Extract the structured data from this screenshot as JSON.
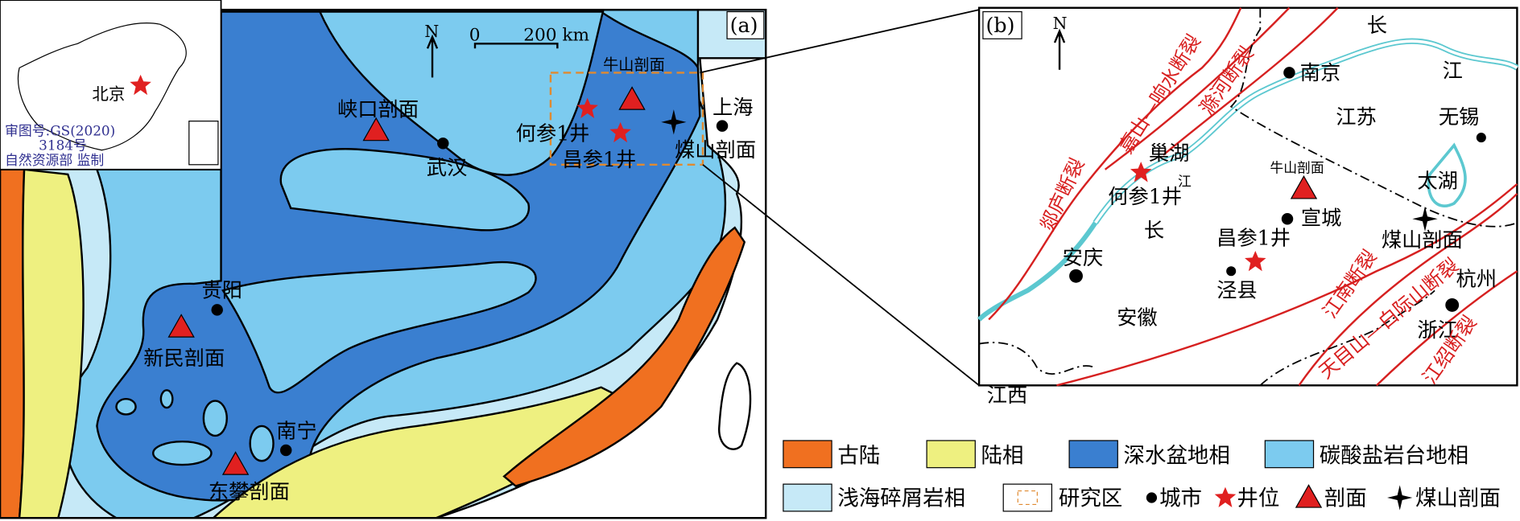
{
  "panel_a": {
    "label": "(a)",
    "north": "N",
    "scale_bar": [
      "0",
      "200 km"
    ],
    "inset": {
      "capital": "北京",
      "approval": [
        "审图号:GS(2020)",
        "3184号",
        "自然资源部 监制"
      ]
    },
    "places": [
      "牛山剖面",
      "峡口剖面",
      "武汉",
      "上海",
      "何参1井",
      "昌参1井",
      "煤山剖面",
      "贵阳",
      "新民剖面",
      "南宁",
      "东攀剖面"
    ]
  },
  "panel_b": {
    "label": "(b)",
    "north": "N",
    "places": [
      "长",
      "江",
      "南京",
      "江苏",
      "无锡",
      "巢湖",
      "江",
      "何参1井",
      "长",
      "牛山剖面",
      "宣城",
      "太湖",
      "昌参1井",
      "煤山剖面",
      "安庆",
      "泾县",
      "安徽",
      "杭州",
      "浙江",
      "江西"
    ],
    "faults": [
      "郯庐断裂",
      "嘉山—响水断裂",
      "滁河断裂",
      "江南断裂",
      "天目山—白际山断裂",
      "江绍断裂"
    ]
  },
  "legend": [
    "古陆",
    "陆相",
    "深水盆地相",
    "碳酸盐岩台地相",
    "浅海碎屑岩相",
    "研究区",
    "城市",
    "井位",
    "剖面",
    "煤山剖面"
  ]
}
